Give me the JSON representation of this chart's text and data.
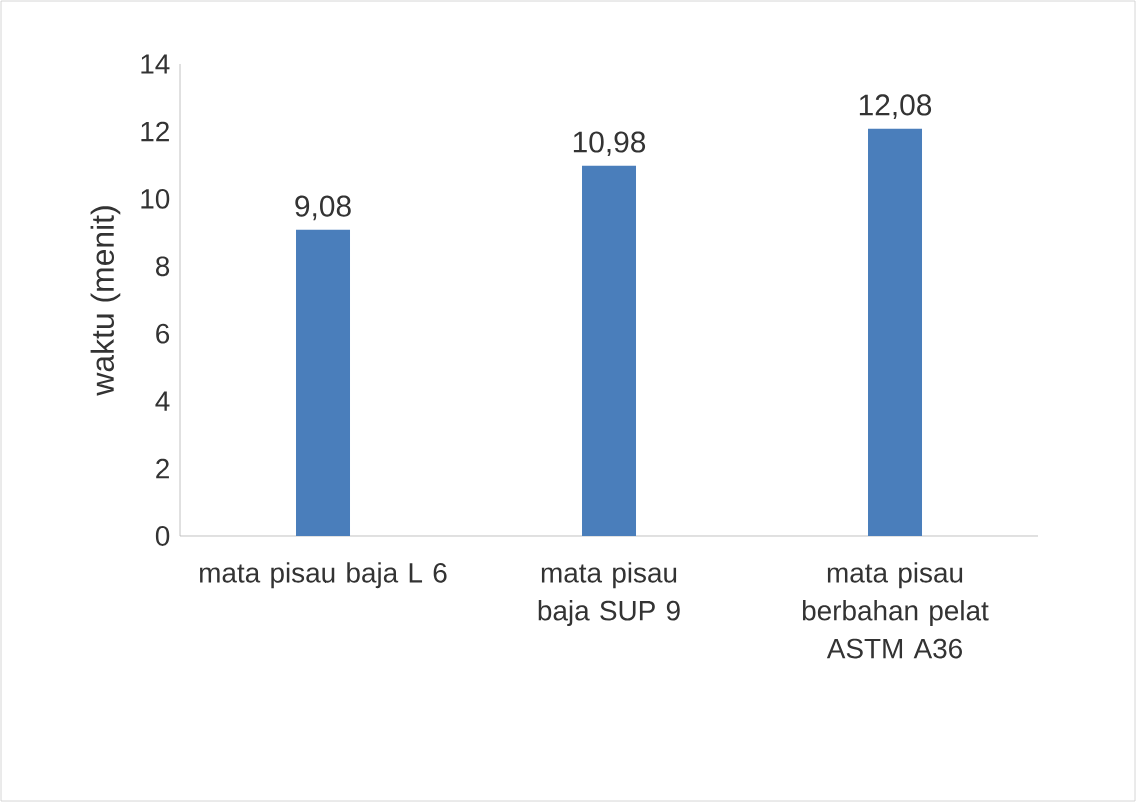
{
  "chart_data": {
    "type": "bar",
    "ylabel": "waktu (menit)",
    "categories": [
      "mata pisau baja L 6",
      "mata pisau baja SUP 9",
      "mata pisau berbahan pelat ASTM A36"
    ],
    "values": [
      9.08,
      10.98,
      12.08
    ],
    "value_labels": [
      "9,08",
      "10,98",
      "12,08"
    ],
    "color": "#4a7ebb",
    "ylim": [
      0,
      14
    ],
    "yticks": [
      0,
      2,
      4,
      6,
      8,
      10,
      12,
      14
    ],
    "grid": false
  }
}
